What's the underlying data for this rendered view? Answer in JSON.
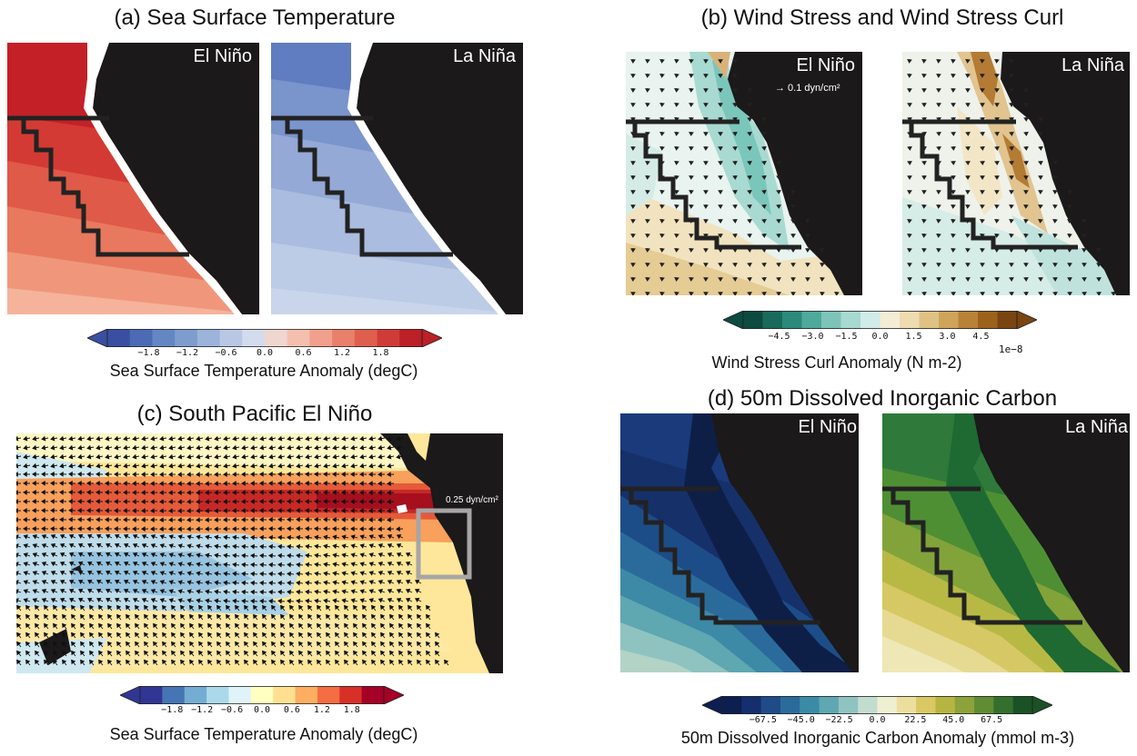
{
  "panels": {
    "a": {
      "title": "(a) Sea Surface Temperature",
      "left_label": "El Niño",
      "right_label": "La Niña"
    },
    "b": {
      "title": "(b) Wind Stress and Wind Stress Curl",
      "left_label": "El Niño",
      "right_label": "La Niña",
      "reference_vector": "→  0.1 dyn/cm²"
    },
    "c": {
      "title": "(c) South Pacific El Niño",
      "reference_vector": "0.25 dyn/cm²"
    },
    "d": {
      "title": "(d) 50m Dissolved Inorganic Carbon",
      "left_label": "El Niño",
      "right_label": "La Niña"
    }
  },
  "colorbars": {
    "sst_a": {
      "label": "Sea Surface Temperature Anomaly (degC)",
      "ticks": [
        "−1.8",
        "−1.2",
        "−0.6",
        "0.0",
        "0.6",
        "1.2",
        "1.8"
      ],
      "colors": [
        "#3a4fa2",
        "#4d6bb4",
        "#6486c3",
        "#7f9ccf",
        "#9cb3da",
        "#b8c8e4",
        "#d3dcee",
        "#efd6cf",
        "#f4bfae",
        "#f0a08d",
        "#e8806c",
        "#df5f4f",
        "#cf3c38",
        "#bb2127"
      ]
    },
    "curl_b": {
      "label": "Wind Stress Curl Anomaly (N m-2)",
      "exponent": "1e−8",
      "ticks": [
        "−4.5",
        "−3.0",
        "−1.5",
        "0.0",
        "1.5",
        "3.0",
        "4.5"
      ],
      "colors": [
        "#0d4a3f",
        "#1a6a5c",
        "#2b8a7a",
        "#4fa99a",
        "#7cc4b8",
        "#a6d9d0",
        "#d0ece8",
        "#f5ecd6",
        "#eedbb0",
        "#dfc183",
        "#cfa45a",
        "#b98236",
        "#9c621d",
        "#7a4510"
      ]
    },
    "sst_c": {
      "label": "Sea Surface Temperature Anomaly (degC)",
      "ticks": [
        "−1.8",
        "−1.2",
        "−0.6",
        "0.0",
        "0.6",
        "1.2",
        "1.8"
      ],
      "colors": [
        "#313695",
        "#4575b4",
        "#74add1",
        "#abd9e9",
        "#e0f3f8",
        "#ffffbf",
        "#fee090",
        "#fdae61",
        "#f46d43",
        "#d73027",
        "#a50026"
      ]
    },
    "dic_d": {
      "label": "50m Dissolved Inorganic Carbon Anomaly (mmol m-3)",
      "ticks": [
        "−67.5",
        "−45.0",
        "−22.5",
        "0.0",
        "22.5",
        "45.0",
        "67.5"
      ],
      "colors": [
        "#0d1e50",
        "#152e6e",
        "#1f4b89",
        "#2b6b9b",
        "#3b8aa6",
        "#5fa7b1",
        "#8fc3bf",
        "#c2dccf",
        "#efefd2",
        "#ecdf9e",
        "#d9c864",
        "#b6b542",
        "#8ca23a",
        "#5f8c34",
        "#356f2e",
        "#1a5226"
      ]
    }
  },
  "colors": {
    "land": "#1b1919",
    "box": "#222222",
    "grey_box": "#a6a6a6"
  }
}
